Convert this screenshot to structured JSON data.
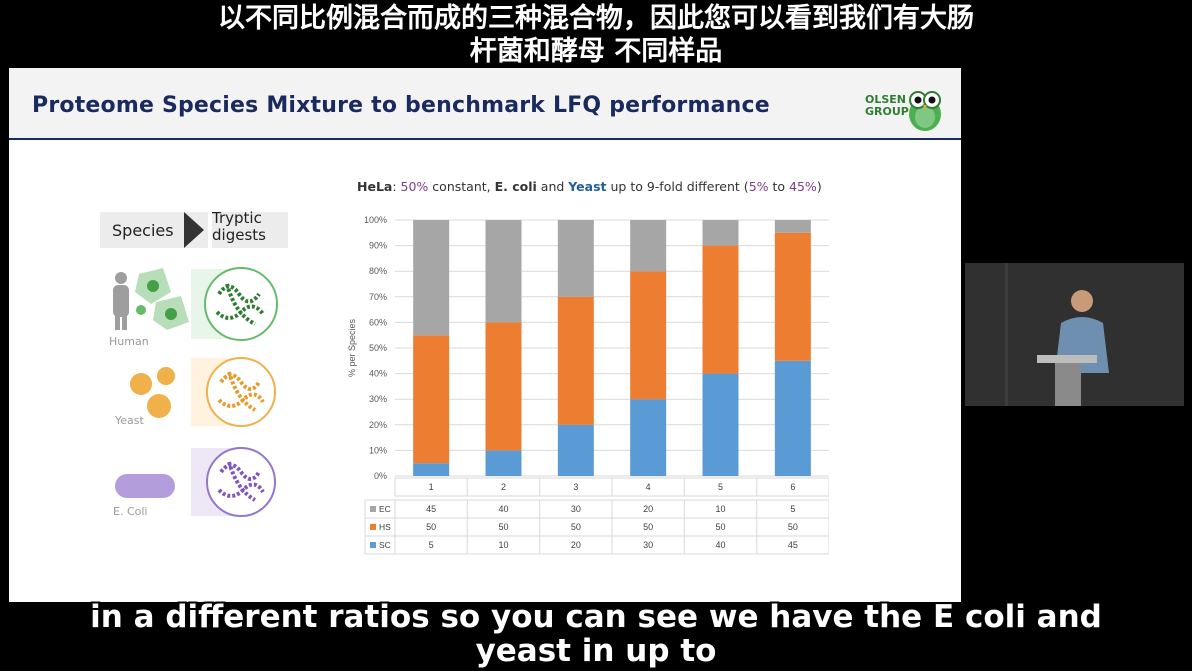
{
  "subtitles": {
    "top_line1": "以不同比例混合而成的三种混合物，因此您可以看到我们有大肠",
    "top_line2": "杆菌和酵母 不同样品",
    "bottom_line1": "in a different ratios so you can see we have the E coli and",
    "bottom_line2": "yeast in up to"
  },
  "slide": {
    "title": "Proteome Species Mixture to benchmark LFQ performance",
    "logo_line1": "OLSEN",
    "logo_line2": "GROUP",
    "subtitle": {
      "hela": "HeLa",
      "p1": ": ",
      "pct50": "50%",
      "p2": " constant, ",
      "ecoli": "E. coli",
      "p3": " and ",
      "yeast": "Yeast",
      "p4": " up to 9-fold different (",
      "pct5": "5%",
      "p5": " to ",
      "pct45": "45%",
      "p6": ")"
    },
    "species_label": "Species",
    "digests_line1": "Tryptic",
    "digests_line2": "digests",
    "organisms": [
      "Human",
      "Yeast",
      "E. Coli"
    ]
  },
  "colors": {
    "EC": "#a6a6a6",
    "HS": "#ed7d31",
    "SC": "#5b9bd5",
    "title": "#1b2a5e"
  },
  "chart_data": {
    "type": "bar",
    "stacked": true,
    "categories": [
      "1",
      "2",
      "3",
      "4",
      "5",
      "6"
    ],
    "ylabel": "% per Species",
    "ylim": [
      0,
      100
    ],
    "yticks": [
      "0%",
      "10%",
      "20%",
      "30%",
      "40%",
      "50%",
      "60%",
      "70%",
      "80%",
      "90%",
      "100%"
    ],
    "grid": true,
    "series": [
      {
        "name": "SC",
        "values": [
          5,
          10,
          20,
          30,
          40,
          45
        ]
      },
      {
        "name": "HS",
        "values": [
          50,
          50,
          50,
          50,
          50,
          50
        ]
      },
      {
        "name": "EC",
        "values": [
          45,
          40,
          30,
          20,
          10,
          5
        ]
      }
    ],
    "table_rows": [
      {
        "name": "EC",
        "values": [
          "45",
          "40",
          "30",
          "20",
          "10",
          "5"
        ]
      },
      {
        "name": "HS",
        "values": [
          "50",
          "50",
          "50",
          "50",
          "50",
          "50"
        ]
      },
      {
        "name": "SC",
        "values": [
          "5",
          "10",
          "20",
          "30",
          "40",
          "45"
        ]
      }
    ]
  }
}
